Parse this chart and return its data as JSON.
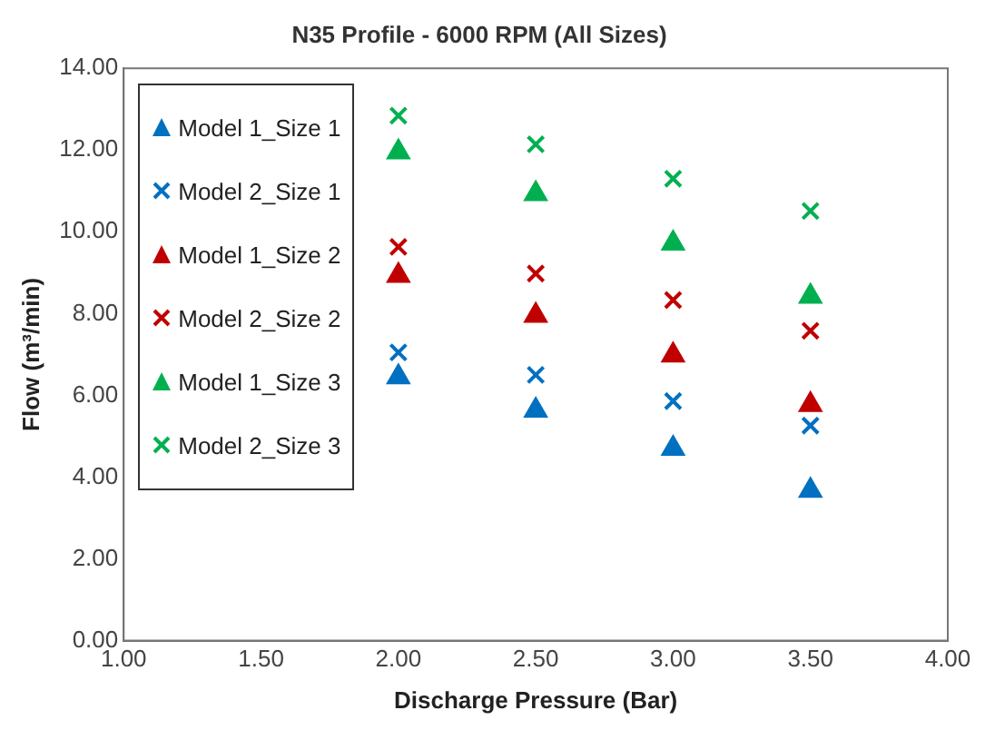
{
  "chart_data": {
    "type": "scatter",
    "title": "N35 Profile - 6000 RPM (All Sizes)",
    "xlabel": "Discharge Pressure (Bar)",
    "ylabel": "Flow (m³/min)",
    "x": [
      2,
      2.5,
      3,
      3.5
    ],
    "xlim": [
      1,
      4
    ],
    "xticks": [
      {
        "value": 1,
        "label": "1.00"
      },
      {
        "value": 1.5,
        "label": "1.50"
      },
      {
        "value": 2,
        "label": "2.00"
      },
      {
        "value": 2.5,
        "label": "2.50"
      },
      {
        "value": 3,
        "label": "3.00"
      },
      {
        "value": 3.5,
        "label": "3.50"
      },
      {
        "value": 4,
        "label": "4.00"
      }
    ],
    "ylim": [
      0,
      14
    ],
    "yticks": [
      {
        "value": 0,
        "label": "0.00"
      },
      {
        "value": 2,
        "label": "2.00"
      },
      {
        "value": 4,
        "label": "4.00"
      },
      {
        "value": 6,
        "label": "6.00"
      },
      {
        "value": 8,
        "label": "8.00"
      },
      {
        "value": 10,
        "label": "10.00"
      },
      {
        "value": 12,
        "label": "12.00"
      },
      {
        "value": 14,
        "label": "14.00"
      }
    ],
    "grid": false,
    "legend": "top left",
    "series": [
      {
        "name": "Model 1_Size 1",
        "color": "#0070c0",
        "marker": "triangle",
        "values": [
          6.45,
          5.63,
          4.7,
          3.67
        ]
      },
      {
        "name": "Model 2_Size 1",
        "color": "#0070c0",
        "marker": "cross",
        "values": [
          7.05,
          6.5,
          5.86,
          5.26
        ]
      },
      {
        "name": "Model 1_Size 2",
        "color": "#c00000",
        "marker": "triangle",
        "values": [
          8.93,
          7.95,
          6.98,
          5.77
        ]
      },
      {
        "name": "Model 2_Size 2",
        "color": "#c00000",
        "marker": "cross",
        "values": [
          9.63,
          8.98,
          8.33,
          7.58
        ]
      },
      {
        "name": "Model 1_Size 3",
        "color": "#00b050",
        "marker": "triangle",
        "values": [
          11.95,
          10.93,
          9.72,
          8.42
        ]
      },
      {
        "name": "Model 2_Size 3",
        "color": "#00b050",
        "marker": "cross",
        "values": [
          12.84,
          12.14,
          11.3,
          10.51
        ]
      }
    ]
  }
}
